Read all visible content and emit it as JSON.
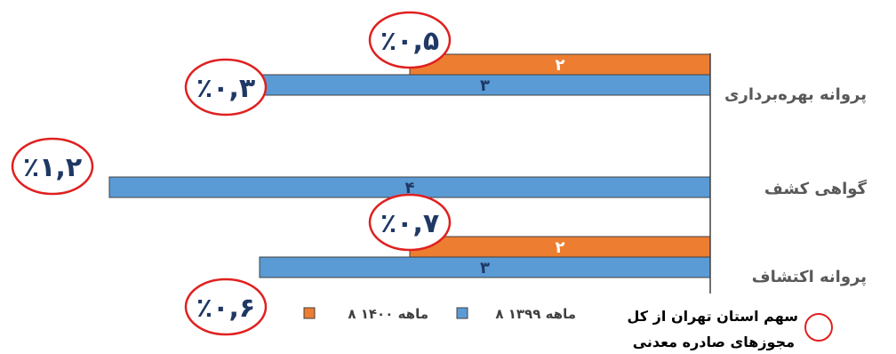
{
  "chart_data": {
    "type": "bar",
    "orientation": "horizontal",
    "direction": "rtl",
    "categories": [
      "پروانه بهره‌برداری",
      "گواهی کشف",
      "پروانه اکتشاف"
    ],
    "series": [
      {
        "name": "۸ ماهه ۱۴۰۰",
        "color": "#ed7d31",
        "values": [
          2,
          null,
          2
        ],
        "value_labels": [
          "۲",
          "",
          "۲"
        ],
        "share_labels": [
          "٪۰,۵",
          "",
          "٪۰,۷"
        ]
      },
      {
        "name": "۸ ماهه ۱۳۹۹",
        "color": "#5b9bd5",
        "values": [
          3,
          4,
          3
        ],
        "value_labels": [
          "۳",
          "۴",
          "۳"
        ],
        "share_labels": [
          "٪۰,۳",
          "٪۱,۲",
          "٪۰,۶"
        ]
      }
    ],
    "xlim": [
      0,
      4
    ],
    "grid": false,
    "legend": "bottom",
    "annotation_circle_color": "#e02020",
    "note_lines": [
      "سهم استان تهران از کل",
      "مجوزهای صادره معدنی"
    ]
  }
}
